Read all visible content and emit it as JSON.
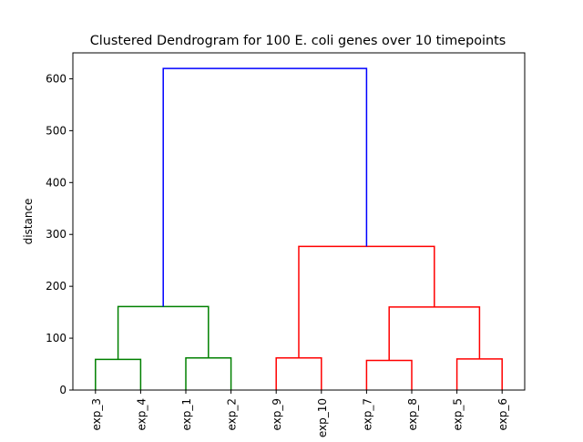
{
  "chart_data": {
    "type": "dendrogram",
    "title": "Clustered Dendrogram for 100 E. coli genes over 10 timepoints",
    "xlabel": "",
    "ylabel": "distance",
    "ylim": [
      0,
      650
    ],
    "yticks": [
      0,
      100,
      200,
      300,
      400,
      500,
      600
    ],
    "leaves": [
      "exp_3",
      "exp_4",
      "exp_1",
      "exp_2",
      "exp_9",
      "exp_10",
      "exp_7",
      "exp_8",
      "exp_5",
      "exp_6"
    ],
    "colors": {
      "green": "#008000",
      "red": "#ff0000",
      "blue": "#0000ff"
    },
    "links": [
      {
        "left": [
          0,
          0
        ],
        "right": [
          1,
          0
        ],
        "height": 59,
        "color": "green"
      },
      {
        "left": [
          2,
          0
        ],
        "right": [
          3,
          0
        ],
        "height": 62,
        "color": "green"
      },
      {
        "left": [
          0.5,
          59
        ],
        "right": [
          2.5,
          62
        ],
        "height": 161,
        "color": "green"
      },
      {
        "left": [
          4,
          0
        ],
        "right": [
          5,
          0
        ],
        "height": 62,
        "color": "red"
      },
      {
        "left": [
          6,
          0
        ],
        "right": [
          7,
          0
        ],
        "height": 57,
        "color": "red"
      },
      {
        "left": [
          8,
          0
        ],
        "right": [
          9,
          0
        ],
        "height": 60,
        "color": "red"
      },
      {
        "left": [
          6.5,
          57
        ],
        "right": [
          8.5,
          60
        ],
        "height": 160,
        "color": "red"
      },
      {
        "left": [
          4.5,
          62
        ],
        "right": [
          7.5,
          160
        ],
        "height": 277,
        "color": "red"
      },
      {
        "left": [
          1.5,
          161
        ],
        "right": [
          6,
          277
        ],
        "height": 620,
        "color": "blue"
      }
    ],
    "grid": false,
    "legend": "none"
  }
}
